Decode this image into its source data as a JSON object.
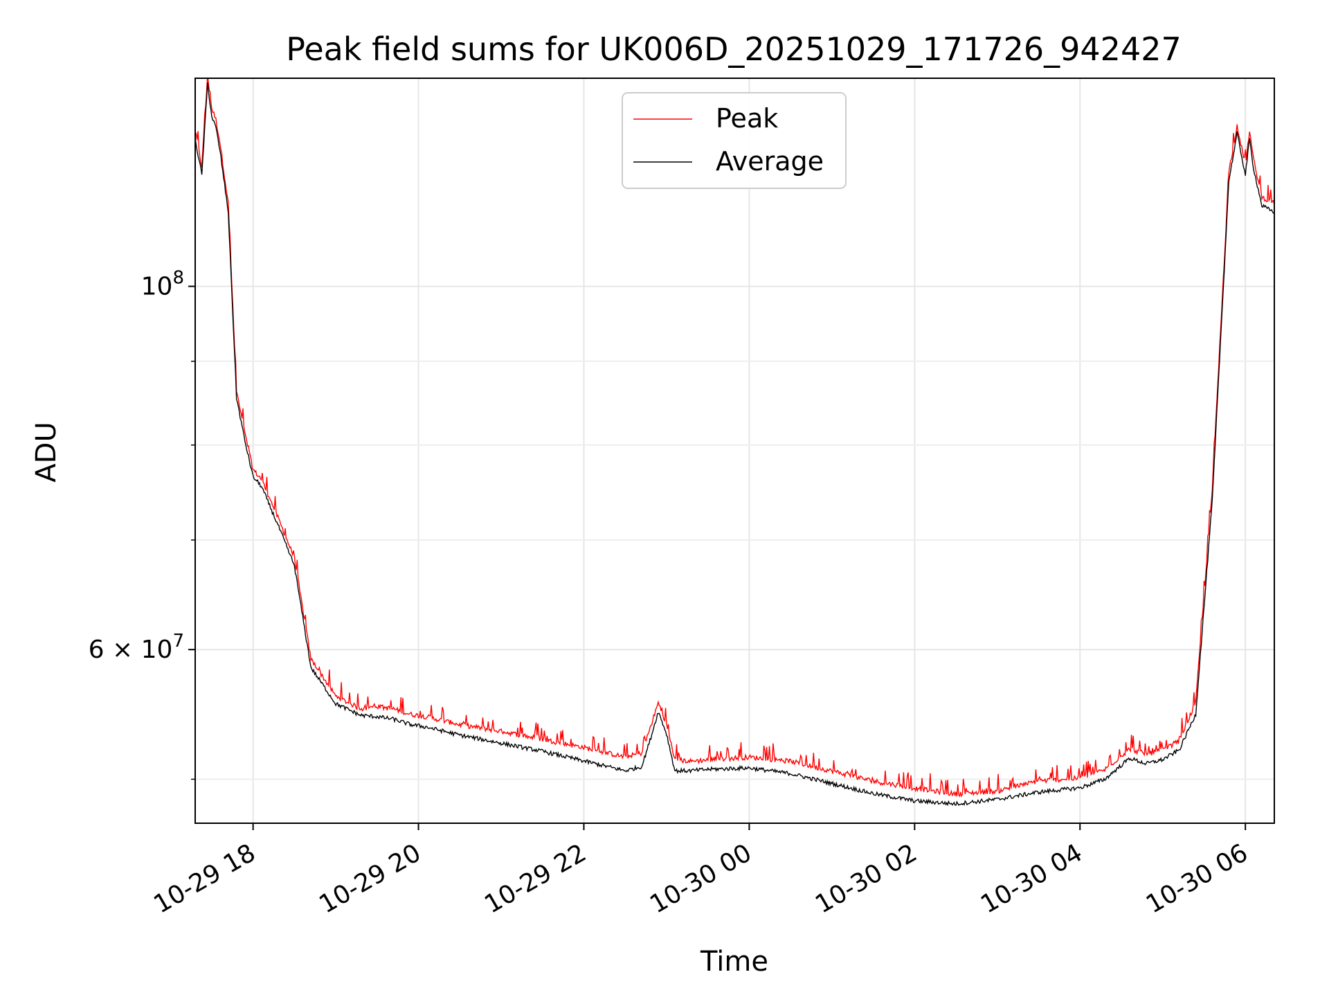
{
  "chart_data": {
    "type": "line",
    "title": "Peak field sums for UK006D_20251029_171726_942427",
    "xlabel": "Time",
    "ylabel": "ADU",
    "yscale": "log",
    "ylim": [
      47000000,
      134000000
    ],
    "xlim_hours": [
      -0.7,
      12.35
    ],
    "grid": true,
    "legend_position": "upper-center",
    "x_ticks": [
      {
        "hour": 0,
        "label": "10-29 18"
      },
      {
        "hour": 2,
        "label": "10-29 20"
      },
      {
        "hour": 4,
        "label": "10-29 22"
      },
      {
        "hour": 6,
        "label": "10-30 00"
      },
      {
        "hour": 8,
        "label": "10-30 02"
      },
      {
        "hour": 10,
        "label": "10-30 04"
      },
      {
        "hour": 12,
        "label": "10-30 06"
      }
    ],
    "y_ticks": [
      {
        "value": 100000000,
        "base": "10",
        "exp": "8",
        "mult": ""
      },
      {
        "value": 60000000,
        "base": "10",
        "exp": "7",
        "mult": "6 × "
      }
    ],
    "y_minor_ticks": [
      50000000,
      70000000,
      80000000,
      90000000
    ],
    "x_hour_zero_label": "2025-10-29 18:00",
    "series": [
      {
        "name": "Peak",
        "color": "#ff0000",
        "x_hours": [
          -0.7,
          -0.62,
          -0.55,
          -0.5,
          -0.45,
          -0.4,
          -0.3,
          -0.2,
          -0.1,
          0.0,
          0.1,
          0.3,
          0.5,
          0.7,
          1.0,
          1.3,
          1.5,
          1.7,
          1.9,
          2.1,
          2.5,
          3.0,
          3.5,
          4.0,
          4.5,
          4.7,
          4.8,
          4.9,
          5.0,
          5.1,
          5.3,
          5.5,
          6.0,
          6.5,
          7.0,
          7.5,
          8.0,
          8.5,
          9.0,
          9.5,
          10.0,
          10.3,
          10.6,
          10.8,
          11.0,
          11.2,
          11.4,
          11.6,
          11.8,
          11.9,
          12.0,
          12.05,
          12.1,
          12.2,
          12.35
        ],
        "values": [
          124000000,
          118000000,
          134000000,
          128000000,
          126000000,
          122000000,
          112000000,
          86000000,
          81000000,
          77000000,
          76000000,
          72000000,
          68000000,
          59000000,
          56000000,
          55000000,
          55200000,
          55000000,
          54600000,
          54400000,
          53800000,
          53300000,
          52700000,
          52100000,
          51400000,
          51700000,
          53500000,
          55500000,
          53800000,
          51200000,
          51100000,
          51200000,
          51400000,
          51100000,
          50400000,
          49700000,
          49200000,
          48800000,
          49000000,
          49700000,
          49900000,
          50500000,
          52000000,
          51600000,
          51900000,
          52600000,
          55500000,
          75000000,
          117000000,
          125000000,
          118000000,
          124000000,
          119000000,
          113000000,
          112000000
        ]
      },
      {
        "name": "Average",
        "color": "#000000",
        "x_hours": [
          -0.7,
          -0.62,
          -0.55,
          -0.5,
          -0.45,
          -0.4,
          -0.3,
          -0.2,
          -0.1,
          0.0,
          0.1,
          0.3,
          0.5,
          0.7,
          1.0,
          1.3,
          1.5,
          1.7,
          1.9,
          2.1,
          2.5,
          3.0,
          3.5,
          4.0,
          4.5,
          4.7,
          4.8,
          4.9,
          5.0,
          5.1,
          5.3,
          5.5,
          6.0,
          6.5,
          7.0,
          7.5,
          8.0,
          8.5,
          9.0,
          9.5,
          10.0,
          10.3,
          10.6,
          10.8,
          11.0,
          11.2,
          11.4,
          11.6,
          11.8,
          11.9,
          12.0,
          12.05,
          12.1,
          12.2,
          12.35
        ],
        "values": [
          123000000,
          117000000,
          133000000,
          127000000,
          125000000,
          121000000,
          111000000,
          85500000,
          80500000,
          76500000,
          75500000,
          71500000,
          67500000,
          58500000,
          55600000,
          54700000,
          54600000,
          54400000,
          54000000,
          53800000,
          53200000,
          52600000,
          52000000,
          51300000,
          50600000,
          50900000,
          52800000,
          55000000,
          53300000,
          50600000,
          50600000,
          50700000,
          50800000,
          50400000,
          49700000,
          49000000,
          48500000,
          48300000,
          48600000,
          49100000,
          49400000,
          50000000,
          51500000,
          51100000,
          51400000,
          52100000,
          54800000,
          74000000,
          116000000,
          124000000,
          117000000,
          123000000,
          118000000,
          112000000,
          111000000
        ]
      }
    ]
  }
}
